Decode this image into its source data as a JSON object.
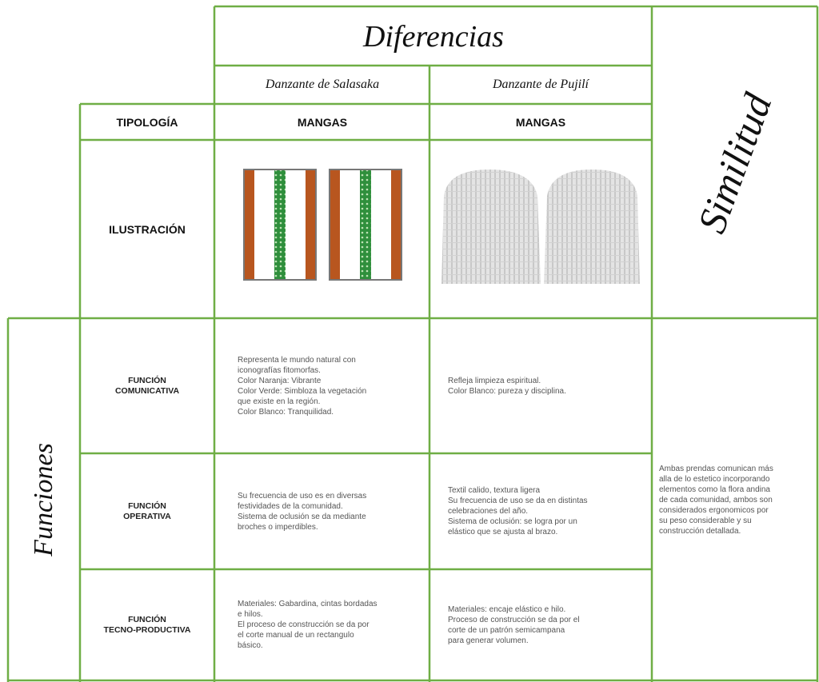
{
  "header": {
    "differences_title": "Diferencias",
    "similarity_title": "Similitud",
    "groups_title": "Funciones"
  },
  "columns": [
    "Danzante de Salasaka",
    "Danzante de Pujilí"
  ],
  "typology": {
    "label": "TIPOLOGÍA",
    "values": [
      "MANGAS",
      "MANGAS"
    ]
  },
  "illustration": {
    "label": "ILUSTRACIÓN"
  },
  "functions": [
    {
      "label": [
        "FUNCIÓN",
        "COMUNICATIVA"
      ],
      "cells": [
        [
          "Representa le mundo natural con",
          "iconografías fitomorfas.",
          "Color Naranja: Vibrante",
          "Color Verde: Simbloza la vegetación",
          "que existe en la región.",
          "Color Blanco: Tranquilidad."
        ],
        [
          "Refleja limpieza espiritual.",
          "Color Blanco: pureza y disciplina."
        ]
      ]
    },
    {
      "label": [
        "FUNCIÓN",
        "OPERATIVA"
      ],
      "cells": [
        [
          "Su frecuencia de uso es en diversas",
          "festividades de la comunidad.",
          "Sistema de oclusión se da mediante",
          "broches o imperdibles."
        ],
        [
          "Textil calido, textura ligera",
          "Su frecuencia de uso se da en distintas",
          "celebraciones del año.",
          "Sistema de oclusión: se logra por un",
          "elástico que se ajusta al brazo."
        ]
      ]
    },
    {
      "label": [
        "FUNCIÓN",
        "TECNO-PRODUCTIVA"
      ],
      "cells": [
        [
          "Materiales: Gabardina, cintas bordadas",
          "e hilos.",
          "El proceso de construcción se da por",
          "el corte manual de un rectangulo",
          "básico."
        ],
        [
          "Materiales: encaje elástico e hilo.",
          "Proceso de construcción se da por el",
          "corte de un patrón semicampana",
          "para generar volumen."
        ]
      ]
    }
  ],
  "similarity_text": [
    "Ambas prendas comunican más",
    "alla de lo estetico incorporando",
    "elementos como la flora andina",
    "de cada comunidad, ambos son",
    "considerados ergonomicos por",
    "su peso considerable y su",
    "construcción detallada."
  ]
}
